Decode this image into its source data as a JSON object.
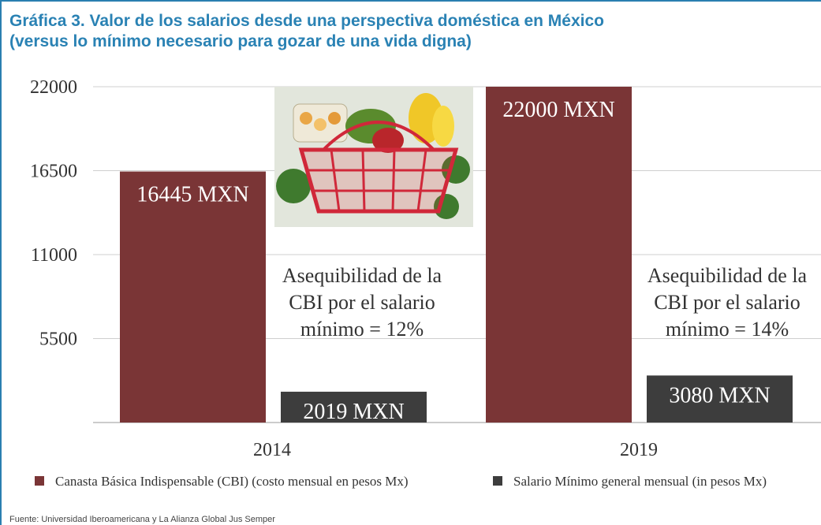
{
  "title": "Gráfica 3. Valor de los salarios desde una perspectiva doméstica en México\n(versus lo mínimo necesario para gozar de una vida digna)",
  "source": "Fuente: Universidad Iberoamericana y La Alianza Global Jus Semper",
  "image_semantic": "grocery-basket-icon",
  "colors": {
    "cbi": "#7a3536",
    "salario": "#3d3d3d",
    "title": "#2a82b4",
    "grid": "#cfcfcf"
  },
  "chart_data": {
    "type": "bar",
    "title": "Gráfica 3. Valor de los salarios desde una perspectiva doméstica en México (versus lo mínimo necesario para gozar de una vida digna)",
    "categories": [
      "2014",
      "2019"
    ],
    "series": [
      {
        "name": "Canasta Básica Indispensable (CBI) (costo mensual en pesos Mx)",
        "values": [
          16445,
          22000
        ],
        "labels": [
          "16445 MXN",
          "22000 MXN"
        ]
      },
      {
        "name": "Salario Mínimo general mensual (in pesos Mx)",
        "values": [
          2019,
          3080
        ],
        "labels": [
          "2019 MXN",
          "3080 MXN"
        ]
      }
    ],
    "yticks": [
      5500,
      11000,
      16500,
      22000
    ],
    "ylim": [
      0,
      22000
    ],
    "grid": true,
    "legend": "bottom",
    "annotations": [
      {
        "category": "2014",
        "lines": [
          "Asequibilidad de la",
          "CBI por el salario",
          "mínimo =  12%"
        ]
      },
      {
        "category": "2019",
        "lines": [
          "Asequibilidad de la",
          "CBI por el salario",
          "mínimo =  14%"
        ]
      }
    ]
  }
}
